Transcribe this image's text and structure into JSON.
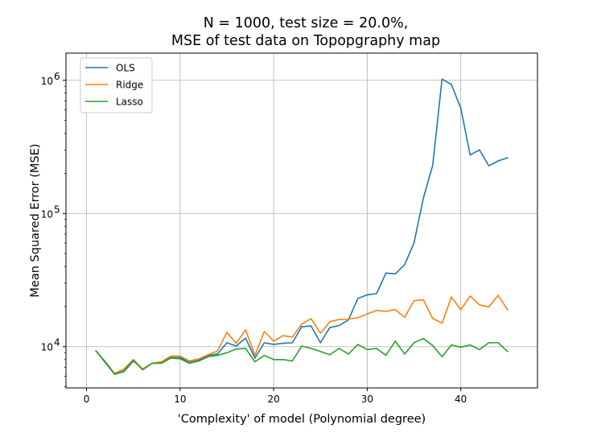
{
  "chart_data": {
    "type": "line",
    "title_line1": "N = 1000, test size = 20.0%,",
    "title_line2": "MSE of test data on Topopgraphy map",
    "xlabel": "'Complexity' of model (Polynomial degree)",
    "ylabel": "Mean Squared Error (MSE)",
    "xlim": [
      -2.2,
      48.2
    ],
    "ylim": [
      4900,
      1600000
    ],
    "yscale": "log",
    "grid": true,
    "legend_position": "top-left",
    "x_ticks": [
      {
        "value": 0,
        "label": "0"
      },
      {
        "value": 10,
        "label": "10"
      },
      {
        "value": 20,
        "label": "20"
      },
      {
        "value": 30,
        "label": "30"
      },
      {
        "value": 40,
        "label": "40"
      }
    ],
    "y_ticks": [
      {
        "value": 10000,
        "base": "10",
        "exp": "4"
      },
      {
        "value": 100000,
        "base": "10",
        "exp": "5"
      },
      {
        "value": 1000000,
        "base": "10",
        "exp": "6"
      }
    ],
    "x": [
      1,
      2,
      3,
      4,
      5,
      6,
      7,
      8,
      9,
      10,
      11,
      12,
      13,
      14,
      15,
      16,
      17,
      18,
      19,
      20,
      21,
      22,
      23,
      24,
      25,
      26,
      27,
      28,
      29,
      30,
      31,
      32,
      33,
      34,
      35,
      36,
      37,
      38,
      39,
      40,
      41,
      42,
      43,
      44,
      45
    ],
    "series": [
      {
        "name": "OLS",
        "color": "#1f77b4",
        "values": [
          9300,
          7600,
          6200,
          6500,
          7800,
          6800,
          7500,
          7600,
          8300,
          8300,
          7600,
          7900,
          8600,
          8800,
          10700,
          10100,
          11600,
          8200,
          10700,
          10400,
          10600,
          10700,
          14100,
          14300,
          10700,
          13900,
          14400,
          15900,
          23000,
          24500,
          25000,
          35700,
          35200,
          41200,
          60000,
          130000,
          230000,
          1020000,
          930000,
          620000,
          275000,
          300000,
          228000,
          248000,
          262000
        ]
      },
      {
        "name": "Ridge",
        "color": "#ff7f0e",
        "values": [
          9300,
          7700,
          6300,
          6800,
          8000,
          6800,
          7500,
          7700,
          8500,
          8500,
          7800,
          8100,
          8700,
          9300,
          12800,
          10600,
          13400,
          8600,
          13000,
          11000,
          12100,
          11800,
          14800,
          16200,
          12600,
          15400,
          16000,
          16100,
          16500,
          17600,
          18700,
          18400,
          19000,
          16600,
          22100,
          22500,
          16300,
          15000,
          23600,
          18900,
          24000,
          20600,
          19900,
          24300,
          18900
        ]
      },
      {
        "name": "Lasso",
        "color": "#2ca02c",
        "values": [
          9300,
          7700,
          6200,
          6600,
          7900,
          6700,
          7500,
          7500,
          8200,
          8100,
          7500,
          7800,
          8400,
          8600,
          9000,
          9600,
          9700,
          7700,
          8600,
          8000,
          8000,
          7800,
          10100,
          9700,
          9200,
          8700,
          9700,
          8800,
          10400,
          9500,
          9700,
          8600,
          11000,
          8800,
          10700,
          11500,
          10200,
          8400,
          10300,
          9900,
          10300,
          9500,
          10700,
          10700,
          9200
        ]
      }
    ]
  }
}
